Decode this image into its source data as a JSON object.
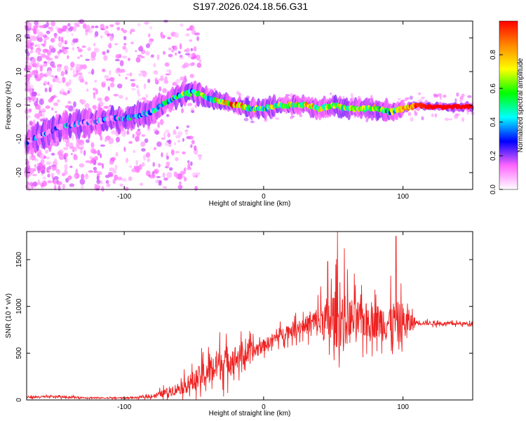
{
  "title": "S197.2026.024.18.56.G31",
  "chart_data": [
    {
      "type": "heatmap",
      "xlabel": "Height of straight line (km)",
      "ylabel": "Frequency (Hz)",
      "xlim": [
        -170,
        150
      ],
      "ylim": [
        -25,
        25
      ],
      "xticks": [
        -100,
        0,
        100
      ],
      "yticks": [
        -20,
        -10,
        0,
        10,
        20
      ],
      "ridge": {
        "x": [
          -170,
          -160,
          -150,
          -140,
          -130,
          -120,
          -110,
          -100,
          -90,
          -80,
          -70,
          -60,
          -50,
          -40,
          -30,
          -20,
          -10,
          0,
          10,
          20,
          30,
          40,
          50,
          60,
          70,
          80,
          90,
          100,
          110,
          120,
          130,
          140,
          150
        ],
        "freq": [
          -11,
          -9,
          -7,
          -6,
          -5,
          -5,
          -4,
          -4,
          -3,
          -2,
          1,
          3,
          4,
          2,
          1,
          0,
          -1,
          -1,
          0,
          0,
          0,
          -1,
          0,
          -1,
          -1,
          -1,
          -2,
          -1,
          0,
          -0.5,
          -0.5,
          -0.5,
          -0.5
        ],
        "amp": [
          0.15,
          0.2,
          0.25,
          0.25,
          0.15,
          0.15,
          0.25,
          0.35,
          0.35,
          0.35,
          0.45,
          0.5,
          0.45,
          0.55,
          0.7,
          0.85,
          0.55,
          0.55,
          0.6,
          0.65,
          0.7,
          0.6,
          0.65,
          0.6,
          0.65,
          0.6,
          0.45,
          0.8,
          0.95,
          1.0,
          1.0,
          1.0,
          1.0
        ]
      }
    },
    {
      "type": "colorbar",
      "label": "Normalized spectral amplitude",
      "ticks": [
        0.0,
        0.2,
        0.4,
        0.6,
        0.8
      ],
      "range": [
        0,
        1
      ],
      "colors": [
        "#ffffff",
        "#ff66ff",
        "#0000ff",
        "#00ffff",
        "#00ff00",
        "#ffff00",
        "#ff8800",
        "#ff0000"
      ]
    },
    {
      "type": "line",
      "xlabel": "Height of straight line (km)",
      "ylabel": "SNR (10 * v/v)",
      "xlim": [
        -170,
        150
      ],
      "ylim": [
        0,
        1800
      ],
      "xticks": [
        -100,
        0,
        100
      ],
      "yticks": [
        0,
        500,
        1000,
        1500
      ],
      "color": "#ee2222",
      "envelope": {
        "x": [
          -170,
          -150,
          -130,
          -110,
          -90,
          -80,
          -70,
          -60,
          -50,
          -40,
          -30,
          -20,
          -10,
          0,
          10,
          20,
          30,
          40,
          50,
          60,
          70,
          80,
          90,
          100,
          110,
          120,
          130,
          140,
          150
        ],
        "mean": [
          30,
          35,
          25,
          20,
          25,
          40,
          80,
          130,
          200,
          300,
          400,
          450,
          500,
          580,
          680,
          750,
          800,
          840,
          860,
          850,
          850,
          840,
          830,
          820,
          830,
          820,
          815,
          815,
          815
        ],
        "spread": [
          25,
          25,
          20,
          15,
          20,
          40,
          100,
          150,
          250,
          350,
          400,
          300,
          250,
          150,
          150,
          180,
          200,
          400,
          700,
          600,
          450,
          400,
          500,
          500,
          60,
          50,
          40,
          40,
          40
        ]
      },
      "peaks": [
        {
          "x": 53,
          "y": 1800
        },
        {
          "x": 58,
          "y": 1620
        },
        {
          "x": 95,
          "y": 1750
        },
        {
          "x": 46,
          "y": 1480
        },
        {
          "x": 65,
          "y": 1350
        }
      ]
    }
  ]
}
